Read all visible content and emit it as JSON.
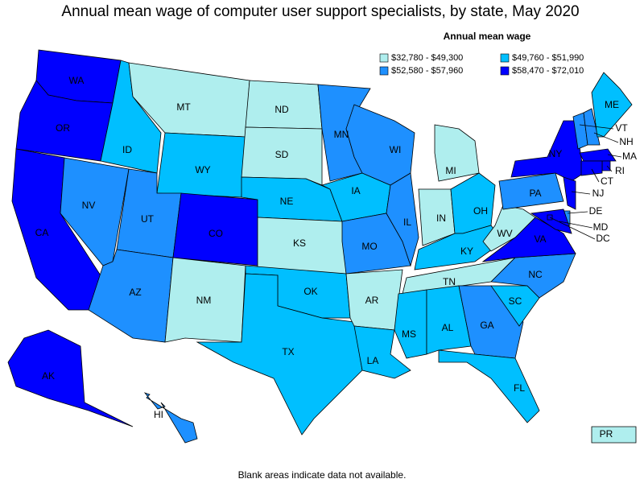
{
  "chart_data": {
    "type": "choropleth",
    "title": "Annual mean wage of computer user support specialists, by state, May 2020",
    "legend_title": "Annual mean wage",
    "legend": [
      {
        "label": "$32,780 - $49,300",
        "color": "#afeeee"
      },
      {
        "label": "$49,760 - $51,990",
        "color": "#00bfff"
      },
      {
        "label": "$52,580 - $57,960",
        "color": "#1e90ff"
      },
      {
        "label": "$58,470 - $72,010",
        "color": "#0000ff"
      }
    ],
    "states": [
      {
        "abbr": "WA",
        "bin": 3
      },
      {
        "abbr": "OR",
        "bin": 3
      },
      {
        "abbr": "CA",
        "bin": 3
      },
      {
        "abbr": "AK",
        "bin": 3
      },
      {
        "abbr": "NV",
        "bin": 2
      },
      {
        "abbr": "ID",
        "bin": 1
      },
      {
        "abbr": "MT",
        "bin": 0
      },
      {
        "abbr": "WY",
        "bin": 1
      },
      {
        "abbr": "UT",
        "bin": 2
      },
      {
        "abbr": "AZ",
        "bin": 2
      },
      {
        "abbr": "CO",
        "bin": 3
      },
      {
        "abbr": "NM",
        "bin": 0
      },
      {
        "abbr": "ND",
        "bin": 0
      },
      {
        "abbr": "SD",
        "bin": 0
      },
      {
        "abbr": "NE",
        "bin": 1
      },
      {
        "abbr": "KS",
        "bin": 0
      },
      {
        "abbr": "OK",
        "bin": 1
      },
      {
        "abbr": "TX",
        "bin": 1
      },
      {
        "abbr": "MN",
        "bin": 2
      },
      {
        "abbr": "IA",
        "bin": 1
      },
      {
        "abbr": "MO",
        "bin": 2
      },
      {
        "abbr": "AR",
        "bin": 0
      },
      {
        "abbr": "LA",
        "bin": 1
      },
      {
        "abbr": "WI",
        "bin": 2
      },
      {
        "abbr": "IL",
        "bin": 2
      },
      {
        "abbr": "MI",
        "bin": 0
      },
      {
        "abbr": "IN",
        "bin": 0
      },
      {
        "abbr": "OH",
        "bin": 1
      },
      {
        "abbr": "KY",
        "bin": 1
      },
      {
        "abbr": "TN",
        "bin": 0
      },
      {
        "abbr": "MS",
        "bin": 1
      },
      {
        "abbr": "AL",
        "bin": 1
      },
      {
        "abbr": "GA",
        "bin": 2
      },
      {
        "abbr": "FL",
        "bin": 1
      },
      {
        "abbr": "SC",
        "bin": 1
      },
      {
        "abbr": "NC",
        "bin": 2
      },
      {
        "abbr": "VA",
        "bin": 3
      },
      {
        "abbr": "WV",
        "bin": 0
      },
      {
        "abbr": "PA",
        "bin": 2
      },
      {
        "abbr": "NY",
        "bin": 3
      },
      {
        "abbr": "VT",
        "bin": 2
      },
      {
        "abbr": "NH",
        "bin": 2
      },
      {
        "abbr": "ME",
        "bin": 1
      },
      {
        "abbr": "MA",
        "bin": 3
      },
      {
        "abbr": "RI",
        "bin": 3
      },
      {
        "abbr": "CT",
        "bin": 3
      },
      {
        "abbr": "NJ",
        "bin": 3
      },
      {
        "abbr": "DE",
        "bin": 2
      },
      {
        "abbr": "MD",
        "bin": 3
      },
      {
        "abbr": "DC",
        "bin": 3
      },
      {
        "abbr": "HI",
        "bin": 2
      },
      {
        "abbr": "PR",
        "bin": 0
      }
    ],
    "note": "Blank areas indicate data not available."
  }
}
